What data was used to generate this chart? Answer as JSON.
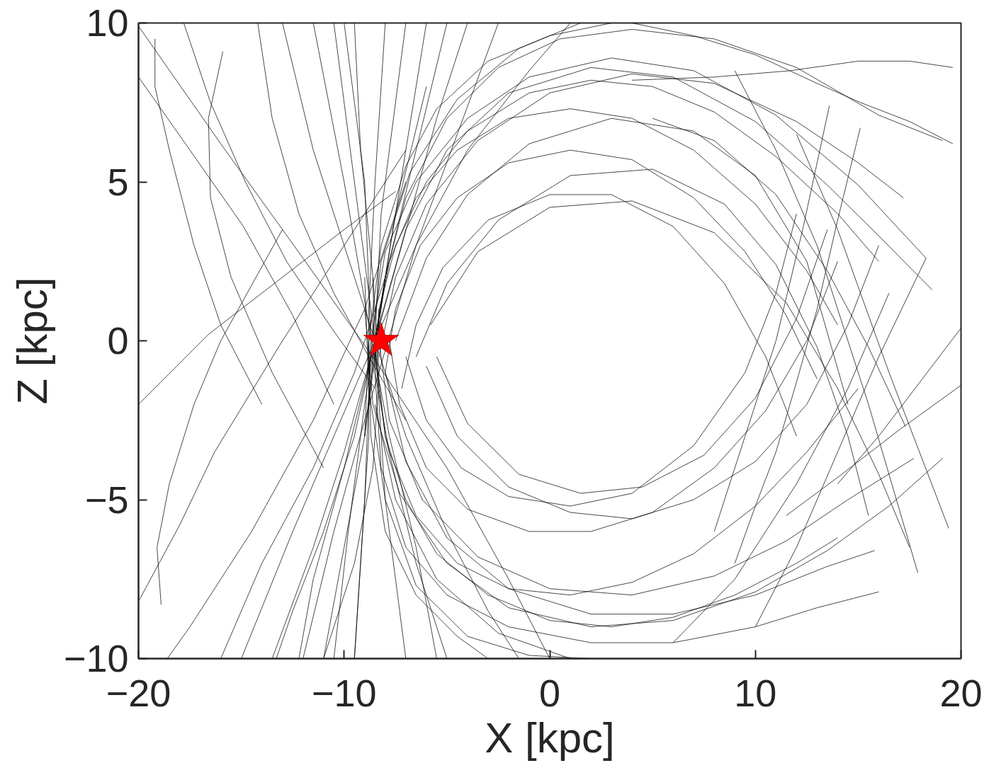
{
  "chart_data": {
    "type": "line",
    "xlabel": "X [kpc]",
    "ylabel": "Z [kpc]",
    "xlim": [
      -20,
      20
    ],
    "ylim": [
      -10,
      10
    ],
    "xticks": [
      {
        "value": -20,
        "label": "−20"
      },
      {
        "value": -10,
        "label": "−10"
      },
      0,
      10,
      20
    ],
    "yticks": [
      {
        "value": -10,
        "label": "−10"
      },
      {
        "value": -5,
        "label": "−5"
      },
      0,
      5,
      10
    ],
    "grid": false,
    "line_style": "solid",
    "marker": "none",
    "series": [
      {
        "color": "#000000",
        "x": [
          -8.5,
          -8.3,
          -7.5,
          -6,
          -4,
          -1,
          2,
          5,
          8,
          11,
          14,
          16
        ],
        "values": [
          -1,
          1,
          3,
          5,
          6.6,
          7.8,
          8.2,
          8,
          7.2,
          5.8,
          4,
          2.5
        ]
      },
      {
        "color": "#000000",
        "x": [
          -8.8,
          -8.5,
          -7.8,
          -6.5,
          -4.5,
          -2,
          1,
          4,
          7,
          10,
          12.5,
          14
        ],
        "values": [
          -2,
          0,
          2.5,
          4.5,
          6,
          7,
          7.3,
          7,
          6,
          4.3,
          2.2,
          0.5
        ]
      },
      {
        "color": "#000000",
        "x": [
          -8,
          -7.5,
          -6.3,
          -4.5,
          -2,
          1,
          4,
          7,
          9.5,
          11.5,
          13
        ],
        "values": [
          -1,
          1,
          3,
          4.5,
          5.6,
          6,
          5.7,
          4.5,
          2.8,
          0.8,
          -1.2
        ]
      },
      {
        "color": "#000000",
        "x": [
          -7.2,
          -6.5,
          -5.2,
          -3,
          0,
          3,
          6,
          8.5,
          10.5,
          12
        ],
        "values": [
          -1.5,
          0.5,
          2.3,
          3.8,
          4.6,
          4.6,
          3.6,
          1.8,
          -0.5,
          -3
        ]
      },
      {
        "color": "#000000",
        "x": [
          -9,
          -8.8,
          -8.2,
          -7,
          -5.5,
          -3,
          0,
          3
        ],
        "values": [
          -3,
          0,
          3,
          5.5,
          7.3,
          8.8,
          9.6,
          10
        ]
      },
      {
        "color": "#000000",
        "x": [
          -8.6,
          -8,
          -7,
          -5,
          -2.5,
          0.5,
          4,
          8,
          12,
          16,
          19.1
        ],
        "values": [
          -1,
          2,
          4.5,
          7,
          8.6,
          9.5,
          9.8,
          9.5,
          8.6,
          7.1,
          6.3
        ]
      },
      {
        "color": "#000000",
        "x": [
          4,
          8,
          11.7,
          15,
          17.5,
          19.6
        ],
        "values": [
          8.2,
          8.3,
          8.5,
          8.8,
          8.8,
          8.6
        ]
      },
      {
        "color": "#000000",
        "x": [
          4,
          7,
          10,
          13,
          15.1,
          17.5,
          19.6
        ],
        "values": [
          10,
          9.6,
          9,
          8.1,
          7.5,
          6.9,
          6.2
        ]
      },
      {
        "color": "#000000",
        "x": [
          -8.3,
          -7.5,
          -6,
          -3.5,
          0,
          4,
          8,
          12,
          15,
          17.2
        ],
        "values": [
          -0.5,
          2,
          4.3,
          6.3,
          7.8,
          8.4,
          8.1,
          6.9,
          5.6,
          4.5
        ]
      },
      {
        "color": "#000000",
        "x": [
          -8.7,
          -8,
          -6.5,
          -4,
          -1,
          3,
          7,
          11,
          15,
          18.3
        ],
        "values": [
          0,
          2.8,
          5,
          7,
          8.3,
          8.9,
          8.5,
          7.1,
          4.9,
          2.6
        ]
      },
      {
        "color": "#000000",
        "x": [
          -7.5,
          -6,
          -4,
          -1,
          3,
          7,
          10,
          12.5,
          14.5
        ],
        "values": [
          0,
          2.6,
          4.6,
          6.2,
          7,
          6.6,
          5.2,
          2.5,
          -2
        ]
      },
      {
        "color": "#000000",
        "x": [
          -6.5,
          -5,
          -2.5,
          1,
          5,
          8.5,
          11,
          13,
          14.5,
          15.5
        ],
        "values": [
          -0.5,
          1.8,
          3.8,
          5.2,
          5.4,
          4.3,
          2.4,
          -0.2,
          -3,
          -5.5
        ]
      },
      {
        "color": "#000000",
        "x": [
          -8.8,
          -8.2,
          -6.8,
          -4.5,
          -1.5,
          1.5
        ],
        "values": [
          -1,
          2.5,
          5.3,
          7.6,
          9.2,
          10
        ]
      },
      {
        "color": "#000000",
        "x": [
          -5.8,
          -3.5,
          0,
          4,
          8,
          11.5,
          14,
          16,
          17.5
        ],
        "values": [
          0.5,
          2.8,
          4.2,
          4.4,
          3.4,
          1.2,
          -1.5,
          -4.2,
          -6.5
        ]
      },
      {
        "color": "#000000",
        "x": [
          -9,
          -8.3,
          -7,
          -5,
          -2,
          2,
          6,
          10,
          13.5,
          16,
          18.6
        ],
        "values": [
          -3,
          0.5,
          3.5,
          6,
          7.8,
          8.6,
          8.3,
          6.9,
          4.9,
          3.3,
          1.6
        ]
      },
      {
        "color": "#000000",
        "x": [
          -8.3,
          -8.4,
          -8,
          -7,
          -5.5,
          -3,
          0,
          3,
          6,
          9,
          12,
          14
        ],
        "values": [
          1,
          -1,
          -3,
          -5,
          -6.7,
          -8,
          -8.8,
          -9,
          -8.7,
          -8,
          -7,
          -6.2
        ]
      },
      {
        "color": "#000000",
        "x": [
          -8.6,
          -8.5,
          -7.8,
          -6.5,
          -4.5,
          -2,
          1,
          4,
          7,
          10,
          12.5,
          15
        ],
        "values": [
          2,
          -1,
          -3.5,
          -5.5,
          -7,
          -7.8,
          -8,
          -7.6,
          -6.7,
          -5.2,
          -3.5,
          -1.5
        ]
      },
      {
        "color": "#000000",
        "x": [
          -7.8,
          -7.3,
          -6,
          -4,
          -1,
          2,
          5,
          8,
          10.5,
          12.5,
          14
        ],
        "values": [
          0,
          -2,
          -4,
          -5.3,
          -6,
          -6,
          -5.4,
          -4,
          -2.2,
          0,
          2.5
        ]
      },
      {
        "color": "#000000",
        "x": [
          -7,
          -6,
          -4.3,
          -2,
          1,
          4,
          7,
          9.5,
          11,
          12
        ],
        "values": [
          -0.5,
          -2.5,
          -4,
          -4.9,
          -5.2,
          -4.8,
          -3.3,
          -1,
          1.5,
          4
        ]
      },
      {
        "color": "#000000",
        "x": [
          -8.8,
          -8.7,
          -8,
          -6.5,
          -4.5,
          -3
        ],
        "values": [
          0,
          -3,
          -6,
          -8,
          -9.3,
          -10
        ]
      },
      {
        "color": "#000000",
        "x": [
          -8.5,
          -7.5,
          -5.5,
          -2.5,
          1
        ],
        "values": [
          -2,
          -5,
          -7.5,
          -9.2,
          -10
        ]
      },
      {
        "color": "#000000",
        "x": [
          -8.5,
          -8.2,
          -7,
          -5,
          -2,
          2,
          6,
          10,
          13,
          16
        ],
        "values": [
          -1,
          -4,
          -6.5,
          -8,
          -9,
          -9.5,
          -9.5,
          -9,
          -8.4,
          -7.9
        ]
      },
      {
        "color": "#000000",
        "x": [
          -8,
          -7,
          -5,
          -2,
          2,
          6,
          10,
          13.5,
          15.8
        ],
        "values": [
          -1,
          -3.8,
          -6.2,
          -7.8,
          -8.6,
          -8.6,
          -8,
          -7.1,
          -6.6
        ]
      },
      {
        "color": "#000000",
        "x": [
          -8.4,
          -7.8,
          -6.2,
          -3.5,
          0,
          4,
          8,
          11.5,
          14.5,
          17.7
        ],
        "values": [
          0.5,
          -2.5,
          -5,
          -6.8,
          -7.8,
          -8,
          -7.4,
          -6.3,
          -5,
          -3.7
        ]
      },
      {
        "color": "#000000",
        "x": [
          -9,
          -8.6,
          -7.3,
          -5,
          -2,
          2,
          6,
          10,
          13.5,
          16.5,
          19.1
        ],
        "values": [
          1,
          -2,
          -4.8,
          -7,
          -8.4,
          -9,
          -8.8,
          -7.9,
          -6.6,
          -5.2,
          -3.7
        ]
      },
      {
        "color": "#000000",
        "x": [
          -6,
          -4.5,
          -2,
          1,
          4,
          7,
          10,
          12.5,
          14.5,
          16
        ],
        "values": [
          -0.8,
          -3,
          -4.6,
          -5.4,
          -5.6,
          -5,
          -3.8,
          -2,
          0.5,
          3
        ]
      },
      {
        "color": "#000000",
        "x": [
          -5.5,
          -4,
          -1.5,
          1.5,
          4.5,
          7.5,
          10,
          12,
          13.5
        ],
        "values": [
          -0.5,
          -2.6,
          -4.2,
          -4.8,
          -4.6,
          -3.6,
          -1.8,
          0.7,
          3.5
        ]
      },
      {
        "color": "#000000",
        "x": [
          -9,
          -8.8,
          -8,
          -6.5,
          -4,
          -1,
          2
        ],
        "values": [
          2,
          -1.5,
          -5,
          -7.7,
          -9.3,
          -9.9,
          -10
        ]
      },
      {
        "color": "#000000",
        "x": [
          -8,
          -8.5,
          -8.8,
          -8.8,
          -9.2,
          -9.5
        ],
        "values": [
          10,
          5,
          1,
          -3,
          -7,
          -10
        ]
      },
      {
        "color": "#000000",
        "x": [
          -10,
          -9,
          -8.7,
          -9,
          -9.5
        ],
        "values": [
          10,
          5,
          0,
          -5,
          -10
        ]
      },
      {
        "color": "#000000",
        "x": [
          -7,
          -8.2,
          -8.5,
          -8,
          -7
        ],
        "values": [
          10,
          4,
          0,
          -5,
          -10
        ]
      },
      {
        "color": "#000000",
        "x": [
          -10.5,
          -9.5,
          -8.7,
          -8,
          -6.5,
          -5
        ],
        "values": [
          10,
          5,
          1,
          -3,
          -7,
          -10
        ]
      },
      {
        "color": "#000000",
        "x": [
          -11.5,
          -10,
          -8.8,
          -7.8,
          -6.5,
          -5.5
        ],
        "values": [
          10,
          5,
          0.5,
          -3,
          -6.5,
          -10
        ]
      },
      {
        "color": "#000000",
        "x": [
          -13,
          -11.5,
          -10,
          -8.5,
          -7,
          -5,
          -3,
          -1.5
        ],
        "values": [
          10,
          6,
          3,
          0,
          -3,
          -6,
          -8.5,
          -10
        ]
      },
      {
        "color": "#000000",
        "x": [
          -15,
          -12.5,
          -10.5,
          -8.5,
          -6.5,
          -4,
          -1,
          1
        ],
        "values": [
          -10,
          -6,
          -3,
          0,
          3,
          6,
          8.5,
          10
        ]
      },
      {
        "color": "#000000",
        "x": [
          -8.5,
          -9.5,
          -11,
          -12.5,
          -13.3
        ],
        "values": [
          0,
          -3,
          -6,
          -8.5,
          -10
        ]
      },
      {
        "color": "#000000",
        "x": [
          -8,
          -9.5,
          -11.5,
          -14,
          -16
        ],
        "values": [
          2,
          -1,
          -4,
          -7,
          -10
        ]
      },
      {
        "color": "#000000",
        "x": [
          -7,
          -9,
          -11.5,
          -14.5,
          -17.5,
          -18.6
        ],
        "values": [
          5,
          1,
          -2.5,
          -6,
          -9,
          -10
        ]
      },
      {
        "color": "#000000",
        "x": [
          -6,
          -7.5,
          -8.5,
          -10,
          -11.5,
          -12.2
        ],
        "values": [
          8,
          4,
          0,
          -4,
          -7.5,
          -10
        ]
      },
      {
        "color": "#000000",
        "x": [
          -5,
          -6.5,
          -8,
          -9,
          -9.8,
          -10.5
        ],
        "values": [
          10,
          6,
          2,
          -2,
          -6,
          -10
        ]
      },
      {
        "color": "#000000",
        "x": [
          -9.5,
          -9.2,
          -8.6,
          -8.3,
          -8.6,
          -9.5,
          -11
        ],
        "values": [
          10,
          6,
          2,
          -1,
          -4,
          -7,
          -10
        ]
      },
      {
        "color": "#000000",
        "x": [
          -12,
          -10.5,
          -9,
          -6.5,
          -4.5,
          -2.5
        ],
        "values": [
          -10,
          -6,
          -2.5,
          3,
          6.5,
          10
        ]
      },
      {
        "color": "#000000",
        "x": [
          -11,
          -10,
          -9,
          -8.5,
          -7.5,
          -6
        ],
        "values": [
          -10,
          -6.5,
          -3,
          0,
          4,
          10
        ]
      },
      {
        "color": "#000000",
        "x": [
          -13.5,
          -11.5,
          -10,
          -8.7,
          -7.2,
          -5.5,
          -4
        ],
        "values": [
          -10,
          -6.5,
          -3.5,
          -0.5,
          3,
          7,
          10
        ]
      },
      {
        "color": "#000000",
        "x": [
          -20,
          -16,
          -12,
          -8.5,
          -5,
          -2,
          0
        ],
        "values": [
          9.9,
          6.2,
          2.6,
          -0.6,
          -4,
          -7.5,
          -10
        ]
      },
      {
        "color": "#000000",
        "x": [
          -20,
          -17.5,
          -14.9,
          -12.5,
          -10.5
        ],
        "values": [
          8.3,
          6,
          3.6,
          0.8,
          -2
        ]
      },
      {
        "color": "#000000",
        "x": [
          -19.2,
          -19.2,
          -18.5,
          -17.3,
          -16,
          -14
        ],
        "values": [
          9.5,
          8,
          6,
          3,
          0.5,
          -2
        ]
      },
      {
        "color": "#000000",
        "x": [
          -15.9,
          -16.6,
          -16.5,
          -15.5,
          -13.5,
          -11
        ],
        "values": [
          9.1,
          7,
          4.5,
          2,
          -1,
          -4
        ]
      },
      {
        "color": "#000000",
        "x": [
          -20,
          -16.6,
          -13,
          -10,
          -7.5
        ],
        "values": [
          -2,
          0.2,
          2,
          3.5,
          4.7
        ]
      },
      {
        "color": "#000000",
        "x": [
          -20,
          -18,
          -16.3,
          -13,
          -10,
          -7
        ],
        "values": [
          -8.2,
          -5.8,
          -3.5,
          0,
          3,
          6
        ]
      },
      {
        "color": "#000000",
        "x": [
          -18.9,
          -19.1,
          -18.5,
          -17.3,
          -16,
          -13
        ],
        "values": [
          -8.3,
          -6.5,
          -4.5,
          -2,
          0,
          3.5
        ]
      },
      {
        "color": "#000000",
        "x": [
          -14.2,
          -13.5,
          -12.2,
          -10.5,
          -8.8,
          -7
        ],
        "values": [
          10,
          7,
          4,
          1.5,
          -0.5,
          -2.5
        ]
      },
      {
        "color": "#000000",
        "x": [
          -17.8,
          -16.5,
          -14.8,
          -12.8,
          -10.5,
          -8.5
        ],
        "values": [
          10,
          7.5,
          5,
          2.5,
          0.3,
          -1.5
        ]
      },
      {
        "color": "#000000",
        "x": [
          8,
          9.5,
          11,
          12.3,
          13.6
        ],
        "values": [
          -6,
          -3,
          0,
          3.5,
          7.4
        ]
      },
      {
        "color": "#000000",
        "x": [
          9,
          10,
          11,
          12,
          13,
          14,
          15.1
        ],
        "values": [
          -7,
          -5.2,
          -3.5,
          -1.3,
          1,
          3.8,
          6.7
        ]
      },
      {
        "color": "#000000",
        "x": [
          12,
          14,
          16.5,
          19.4
        ],
        "values": [
          6.5,
          3.5,
          -1,
          -5.9
        ]
      },
      {
        "color": "#000000",
        "x": [
          9,
          11,
          13,
          15.5,
          17.9
        ],
        "values": [
          8.5,
          6,
          3,
          -2,
          -7.3
        ]
      },
      {
        "color": "#000000",
        "x": [
          20,
          17,
          14,
          11.5
        ],
        "values": [
          -1.4,
          -2.8,
          -4.3,
          -5.5
        ]
      },
      {
        "color": "#000000",
        "x": [
          14,
          16,
          18,
          20
        ],
        "values": [
          -4.5,
          -3,
          -1.3,
          0.4
        ]
      },
      {
        "color": "#000000",
        "x": [
          5,
          8,
          11,
          13.5,
          15.5,
          17.3
        ],
        "values": [
          7,
          6.3,
          4.6,
          2.2,
          -0.2,
          -2.7
        ]
      },
      {
        "color": "#000000",
        "x": [
          6,
          9,
          12,
          14.5,
          16.5
        ],
        "values": [
          -9.5,
          -7.5,
          -4.5,
          -1.5,
          1.5
        ]
      },
      {
        "color": "#000000",
        "x": [
          10,
          12,
          14,
          16,
          18.3
        ],
        "values": [
          -9,
          -6.5,
          -3.5,
          -0.5,
          2.6
        ]
      },
      {
        "type": "scatter",
        "marker": "star",
        "color": "#ff0000",
        "x": [
          -8.2
        ],
        "values": [
          0
        ]
      }
    ]
  }
}
